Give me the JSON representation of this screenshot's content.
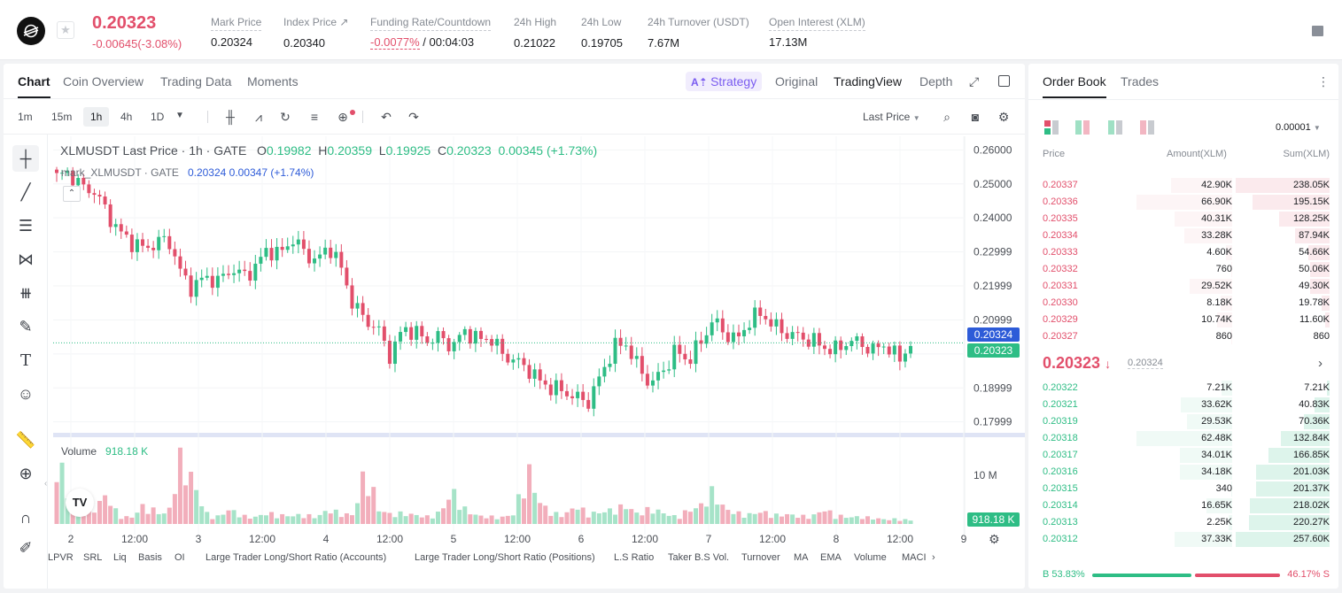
{
  "ticker": {
    "price": "0.20323",
    "change": "-0.00645(-3.08%)",
    "stats": [
      {
        "label": "Mark Price",
        "value": "0.20324"
      },
      {
        "label": "Index Price ↗",
        "value": "0.20340"
      },
      {
        "label": "Funding Rate/Countdown",
        "value_red": "-0.0077%",
        "value": " / 00:04:03"
      },
      {
        "label": "24h High",
        "value": "0.21022"
      },
      {
        "label": "24h Low",
        "value": "0.19705"
      },
      {
        "label": "24h Turnover (USDT)",
        "value": "7.67M"
      },
      {
        "label": "Open Interest (XLM)",
        "value": "17.13M"
      }
    ]
  },
  "chart_tabs": [
    "Chart",
    "Coin Overview",
    "Trading Data",
    "Moments"
  ],
  "view_tabs": {
    "strategy": "Strategy",
    "original": "Original",
    "tradingview": "TradingView",
    "depth": "Depth"
  },
  "timeframes": [
    "1m",
    "15m",
    "1h",
    "4h",
    "1D"
  ],
  "price_type": "Last Price",
  "legend": {
    "symbol": "XLMUSDT Last Price · 1h · GATE",
    "o": "0.19982",
    "h": "0.20359",
    "l": "0.19925",
    "c": "0.20323",
    "chg": "0.00345 (+1.73%)",
    "mark_label": "mark_XLMUSDT · GATE",
    "mark_vals": "0.20324 0.00347 (+1.74%)"
  },
  "volume": {
    "label": "Volume",
    "value": "918.18 K",
    "badge": "918.18 K",
    "axis_label": "10 M"
  },
  "badges": {
    "mark": "0.20324",
    "last": "0.20323"
  },
  "indicators": [
    "LPVR",
    "SRL",
    "Liq",
    "Basis",
    "OI",
    "Large Trader Long/Short Ratio (Accounts)",
    "Large Trader Long/Short Ratio (Positions)",
    "L.S Ratio",
    "Taker B.S Vol.",
    "Turnover",
    "MA",
    "EMA",
    "Volume",
    "MACI"
  ],
  "chart_data": {
    "type": "candlestick",
    "title": "XLMUSDT Last Price · 1h · GATE",
    "y_ticks": [
      "0.26000",
      "0.25000",
      "0.24000",
      "0.22999",
      "0.21999",
      "0.20999",
      "0.19999",
      "0.18999",
      "0.17999"
    ],
    "x_ticks": [
      "2",
      "12:00",
      "3",
      "12:00",
      "4",
      "12:00",
      "5",
      "12:00",
      "6",
      "12:00",
      "7",
      "12:00",
      "8",
      "12:00",
      "9"
    ],
    "ylim": [
      0.176,
      0.264
    ],
    "close_path": [
      0.252,
      0.2535,
      0.249,
      0.248,
      0.242,
      0.236,
      0.233,
      0.231,
      0.2325,
      0.234,
      0.224,
      0.219,
      0.223,
      0.221,
      0.225,
      0.223,
      0.225,
      0.231,
      0.229,
      0.234,
      0.23,
      0.227,
      0.232,
      0.225,
      0.214,
      0.21,
      0.207,
      0.199,
      0.208,
      0.206,
      0.204,
      0.205,
      0.202,
      0.207,
      0.204,
      0.205,
      0.2,
      0.198,
      0.196,
      0.192,
      0.19,
      0.189,
      0.187,
      0.186,
      0.194,
      0.202,
      0.203,
      0.196,
      0.191,
      0.195,
      0.201,
      0.198,
      0.203,
      0.21,
      0.206,
      0.204,
      0.21,
      0.212,
      0.208,
      0.206,
      0.205,
      0.204,
      0.202,
      0.201,
      0.204,
      0.203,
      0.201,
      0.203,
      0.198,
      0.203
    ],
    "volume_path": [
      10.5,
      3,
      1.5,
      2,
      4,
      1.2,
      0.8,
      2.5,
      1.8,
      1.2,
      9,
      6,
      1.5,
      1,
      2,
      1.1,
      0.9,
      1.5,
      1.2,
      1.1,
      1.3,
      0.9,
      2,
      1.4,
      1.2,
      8,
      2,
      1.3,
      1.5,
      1.2,
      1,
      1.6,
      4.5,
      2,
      1.1,
      1,
      0.9,
      1.4,
      8,
      3,
      1.5,
      1.2,
      2.5,
      1.4,
      1.6,
      2,
      2.5,
      1.3,
      2.2,
      1.5,
      1,
      1.8,
      2.4,
      4.5,
      2,
      1.5,
      1.3,
      1.7,
      1.2,
      1.3,
      1.1,
      1,
      2,
      1.2,
      0.9,
      1,
      0.8,
      0.6,
      0.7,
      0.5
    ],
    "volume_ylim": [
      0,
      12
    ]
  },
  "orderbook": {
    "tabs": [
      "Order Book",
      "Trades"
    ],
    "precision": "0.00001",
    "headers": {
      "price": "Price",
      "amount": "Amount(XLM)",
      "sum": "Sum(XLM)"
    },
    "asks": [
      {
        "p": "0.20337",
        "a": "42.90K",
        "s": "238.05K",
        "av": 42.9,
        "sv": 238.05
      },
      {
        "p": "0.20336",
        "a": "66.90K",
        "s": "195.15K",
        "av": 66.9,
        "sv": 195.15
      },
      {
        "p": "0.20335",
        "a": "40.31K",
        "s": "128.25K",
        "av": 40.31,
        "sv": 128.25
      },
      {
        "p": "0.20334",
        "a": "33.28K",
        "s": "87.94K",
        "av": 33.28,
        "sv": 87.94
      },
      {
        "p": "0.20333",
        "a": "4.60K",
        "s": "54.66K",
        "av": 4.6,
        "sv": 54.66
      },
      {
        "p": "0.20332",
        "a": "760",
        "s": "50.06K",
        "av": 0.76,
        "sv": 50.06
      },
      {
        "p": "0.20331",
        "a": "29.52K",
        "s": "49.30K",
        "av": 29.52,
        "sv": 49.3
      },
      {
        "p": "0.20330",
        "a": "8.18K",
        "s": "19.78K",
        "av": 8.18,
        "sv": 19.78
      },
      {
        "p": "0.20329",
        "a": "10.74K",
        "s": "11.60K",
        "av": 10.74,
        "sv": 11.6
      },
      {
        "p": "0.20327",
        "a": "860",
        "s": "860",
        "av": 0.86,
        "sv": 0.86
      }
    ],
    "mid_price": "0.20323",
    "mid_arrow": "↓",
    "mid_mark": "0.20324",
    "bids": [
      {
        "p": "0.20322",
        "a": "7.21K",
        "s": "7.21K",
        "av": 7.21,
        "sv": 7.21
      },
      {
        "p": "0.20321",
        "a": "33.62K",
        "s": "40.83K",
        "av": 33.62,
        "sv": 40.83
      },
      {
        "p": "0.20319",
        "a": "29.53K",
        "s": "70.36K",
        "av": 29.53,
        "sv": 70.36
      },
      {
        "p": "0.20318",
        "a": "62.48K",
        "s": "132.84K",
        "av": 62.48,
        "sv": 132.84
      },
      {
        "p": "0.20317",
        "a": "34.01K",
        "s": "166.85K",
        "av": 34.01,
        "sv": 166.85
      },
      {
        "p": "0.20316",
        "a": "34.18K",
        "s": "201.03K",
        "av": 34.18,
        "sv": 201.03
      },
      {
        "p": "0.20315",
        "a": "340",
        "s": "201.37K",
        "av": 0.34,
        "sv": 201.37
      },
      {
        "p": "0.20314",
        "a": "16.65K",
        "s": "218.02K",
        "av": 16.65,
        "sv": 218.02
      },
      {
        "p": "0.20313",
        "a": "2.25K",
        "s": "220.27K",
        "av": 2.25,
        "sv": 220.27
      },
      {
        "p": "0.20312",
        "a": "37.33K",
        "s": "257.60K",
        "av": 37.33,
        "sv": 257.6
      }
    ],
    "buy_label": "B",
    "buy_pct": "53.83%",
    "sell_pct": "46.17%",
    "sell_label": "S",
    "buy_ratio": 0.5383
  },
  "colors": {
    "up": "#2ebd85",
    "down": "#e24f6b",
    "mark": "#2d5bd8",
    "accent": "#7a5cf0"
  }
}
